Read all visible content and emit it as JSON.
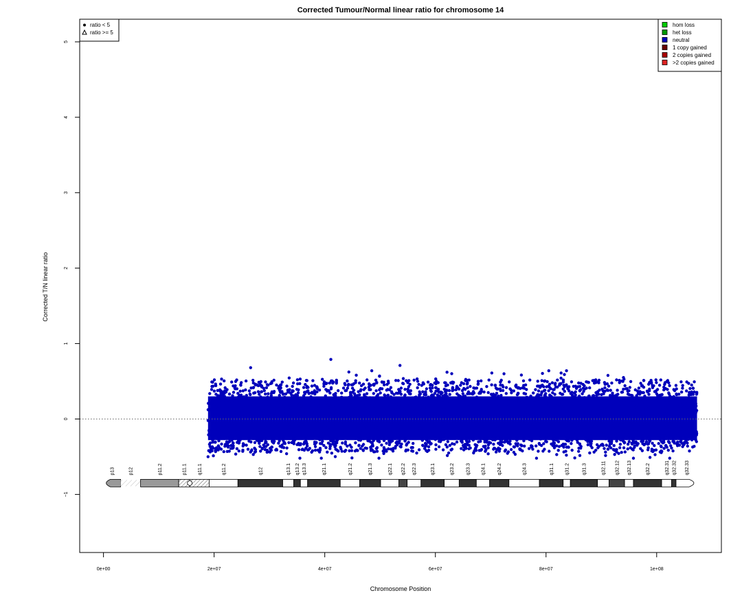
{
  "chart_data": {
    "type": "scatter",
    "title": "Corrected Tumour/Normal linear ratio for chromosome  14",
    "xlabel": "Chromosome Position",
    "ylabel": "Corrected T/N linear ratio",
    "xlim": [
      -4300000,
      111700000
    ],
    "ylim": [
      -1.77,
      5.3
    ],
    "x_ticks": [
      0,
      20000000,
      40000000,
      60000000,
      80000000,
      100000000
    ],
    "x_tick_labels": [
      "0e+00",
      "2e+07",
      "4e+07",
      "6e+07",
      "8e+07",
      "1e+08"
    ],
    "y_ticks": [
      -1,
      0,
      1,
      2,
      3,
      4,
      5
    ],
    "y_tick_labels": [
      "−1",
      "0",
      "1",
      "2",
      "3",
      "4",
      "5"
    ],
    "reference_line": 0,
    "point_color": "#0000bb",
    "data_range": {
      "x": [
        18900000,
        107300000
      ],
      "y_band": [
        -0.28,
        0.3
      ],
      "y_extremes": [
        -0.52,
        0.79
      ]
    },
    "outliers": [
      {
        "x": 26600000,
        "y": 0.68
      },
      {
        "x": 41100000,
        "y": 0.79
      },
      {
        "x": 48500000,
        "y": 0.64
      },
      {
        "x": 53600000,
        "y": 0.71
      },
      {
        "x": 62100000,
        "y": 0.62
      },
      {
        "x": 70200000,
        "y": 0.61
      },
      {
        "x": 72400000,
        "y": 0.6
      },
      {
        "x": 80500000,
        "y": 0.64
      },
      {
        "x": 83700000,
        "y": 0.64
      },
      {
        "x": 45700000,
        "y": 0.58
      },
      {
        "x": 49900000,
        "y": 0.57
      },
      {
        "x": 18900000,
        "y": -0.5
      },
      {
        "x": 92400000,
        "y": -0.47
      },
      {
        "x": 95800000,
        "y": -0.52
      },
      {
        "x": 94000000,
        "y": 0.55
      },
      {
        "x": 97400000,
        "y": -0.42
      },
      {
        "x": 33100000,
        "y": -0.46
      },
      {
        "x": 66900000,
        "y": -0.45
      }
    ],
    "legend_left": {
      "position": "top-left",
      "entries": [
        {
          "label": "ratio < 5",
          "symbol": "circle"
        },
        {
          "label": "ratio >= 5",
          "symbol": "triangle"
        }
      ]
    },
    "legend_right": {
      "position": "top-right",
      "entries": [
        {
          "label": "hom loss",
          "color": "#00cc00"
        },
        {
          "label": "het loss",
          "color": "#009900"
        },
        {
          "label": "neutral",
          "color": "#0000bb"
        },
        {
          "label": "1 copy gained",
          "color": "#660000"
        },
        {
          "label": "2 copies gained",
          "color": "#aa0000"
        },
        {
          "label": ">2 copies gained",
          "color": "#dd2222"
        }
      ]
    },
    "ideogram": {
      "y": -0.85,
      "bands": [
        {
          "name": "p13",
          "start": 0,
          "end": 3100000,
          "stain": "gvar"
        },
        {
          "name": "p12",
          "start": 3100000,
          "end": 6700000,
          "stain": "stalk"
        },
        {
          "name": "p11.2",
          "start": 6700000,
          "end": 13600000,
          "stain": "gvar"
        },
        {
          "name": "p11.1",
          "start": 13600000,
          "end": 15600000,
          "stain": "acen"
        },
        {
          "name": "q11.1",
          "start": 15600000,
          "end": 19100000,
          "stain": "acen"
        },
        {
          "name": "q11.2",
          "start": 19100000,
          "end": 24300000,
          "stain": "gneg"
        },
        {
          "name": "q12",
          "start": 24300000,
          "end": 32400000,
          "stain": "gpos100"
        },
        {
          "name": "q13.1",
          "start": 32400000,
          "end": 34400000,
          "stain": "gneg"
        },
        {
          "name": "q13.2",
          "start": 34400000,
          "end": 35600000,
          "stain": "gpos50"
        },
        {
          "name": "q13.3",
          "start": 35600000,
          "end": 36900000,
          "stain": "gneg"
        },
        {
          "name": "q21.1",
          "start": 36900000,
          "end": 42800000,
          "stain": "gpos100"
        },
        {
          "name": "q21.2",
          "start": 42800000,
          "end": 46300000,
          "stain": "gneg"
        },
        {
          "name": "q21.3",
          "start": 46300000,
          "end": 50100000,
          "stain": "gpos100"
        },
        {
          "name": "q22.1",
          "start": 50100000,
          "end": 53400000,
          "stain": "gneg"
        },
        {
          "name": "q22.2",
          "start": 53400000,
          "end": 54900000,
          "stain": "gpos25"
        },
        {
          "name": "q22.3",
          "start": 54900000,
          "end": 57400000,
          "stain": "gneg"
        },
        {
          "name": "q23.1",
          "start": 57400000,
          "end": 61600000,
          "stain": "gpos75"
        },
        {
          "name": "q23.2",
          "start": 61600000,
          "end": 64300000,
          "stain": "gneg"
        },
        {
          "name": "q23.3",
          "start": 64300000,
          "end": 67400000,
          "stain": "gpos50"
        },
        {
          "name": "q24.1",
          "start": 67400000,
          "end": 69800000,
          "stain": "gneg"
        },
        {
          "name": "q24.2",
          "start": 69800000,
          "end": 73300000,
          "stain": "gpos50"
        },
        {
          "name": "q24.3",
          "start": 73300000,
          "end": 78800000,
          "stain": "gneg"
        },
        {
          "name": "q31.1",
          "start": 78800000,
          "end": 83100000,
          "stain": "gpos100"
        },
        {
          "name": "q31.2",
          "start": 83100000,
          "end": 84400000,
          "stain": "gneg"
        },
        {
          "name": "q31.3",
          "start": 84400000,
          "end": 89300000,
          "stain": "gpos100"
        },
        {
          "name": "q32.11",
          "start": 89300000,
          "end": 91400000,
          "stain": "gneg"
        },
        {
          "name": "q32.12",
          "start": 91400000,
          "end": 94200000,
          "stain": "gpos25"
        },
        {
          "name": "q32.13",
          "start": 94200000,
          "end": 95800000,
          "stain": "gneg"
        },
        {
          "name": "q32.2",
          "start": 95800000,
          "end": 100900000,
          "stain": "gpos50"
        },
        {
          "name": "q32.31",
          "start": 100900000,
          "end": 102700000,
          "stain": "gneg"
        },
        {
          "name": "q32.32",
          "start": 102700000,
          "end": 103500000,
          "stain": "gpos50"
        },
        {
          "name": "q32.33",
          "start": 103500000,
          "end": 107349540,
          "stain": "gneg"
        }
      ]
    }
  }
}
